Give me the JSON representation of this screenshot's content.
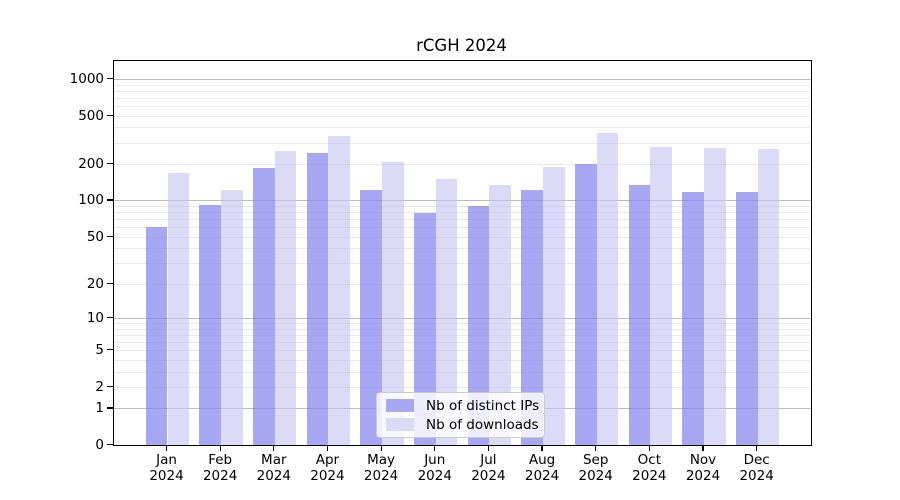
{
  "title": "rCGH 2024",
  "chart_data": {
    "type": "bar",
    "title": "rCGH 2024",
    "months": [
      "Jan",
      "Feb",
      "Mar",
      "Apr",
      "May",
      "Jun",
      "Jul",
      "Aug",
      "Sep",
      "Oct",
      "Nov",
      "Dec"
    ],
    "year": "2024",
    "series": [
      {
        "name": "Nb of distinct IPs",
        "color": "#a7a7f4",
        "values": [
          60,
          91,
          186,
          247,
          122,
          78,
          90,
          123,
          200,
          133,
          117,
          118
        ]
      },
      {
        "name": "Nb of downloads",
        "color": "#dbdbf8",
        "values": [
          168,
          123,
          257,
          337,
          206,
          150,
          133,
          190,
          362,
          278,
          271,
          264
        ]
      }
    ],
    "yscale": "log1p",
    "y_ticks": [
      0,
      1,
      2,
      5,
      10,
      20,
      50,
      100,
      200,
      500,
      1000
    ],
    "ylim": [
      0,
      1400
    ],
    "grid": {
      "orientation": "horizontal",
      "major_color": "#bdbdbd",
      "minor_color": "#e9e9e9"
    },
    "legend_position": "lower-center"
  }
}
